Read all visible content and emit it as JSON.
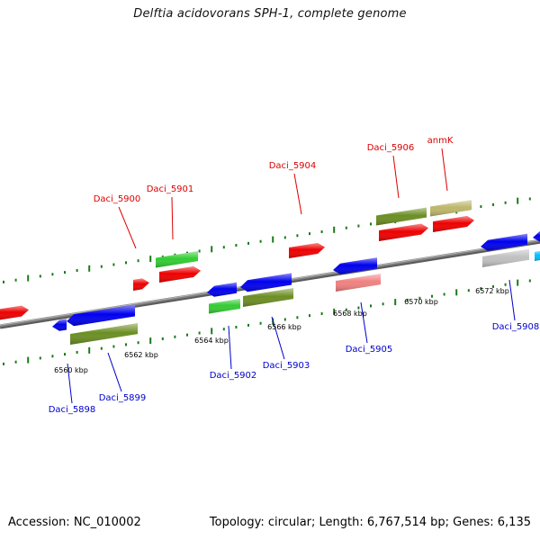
{
  "title": "Delftia acidovorans SPH-1, complete genome",
  "footer": {
    "accession": "Accession: NC_010002",
    "topology": "Topology: circular; Length: 6,767,514 bp; Genes: 6,135"
  },
  "colors": {
    "forward_label": "#dd0000",
    "reverse_label": "#0000cc",
    "backbone": "#808080",
    "ticks": "#1a7a1a",
    "red": "#ee0000",
    "blue": "#0000ee",
    "green": "#33cc33",
    "olive": "#6b8e23",
    "khaki": "#bdb76b",
    "pink": "#f08080",
    "silver": "#c0c0c0",
    "cyan": "#00bfff"
  },
  "scale_labels": [
    "6560 kbp",
    "6562 kbp",
    "6564 kbp",
    "6566 kbp",
    "6568 kbp",
    "6570 kbp",
    "6572 kbp"
  ],
  "gene_labels_forward": [
    "Daci_5900",
    "Daci_5901",
    "Daci_5904",
    "Daci_5906",
    "anmK"
  ],
  "gene_labels_reverse": [
    "Daci_5898",
    "Daci_5899",
    "Daci_5902",
    "Daci_5903",
    "Daci_5905",
    "Daci_5908"
  ]
}
